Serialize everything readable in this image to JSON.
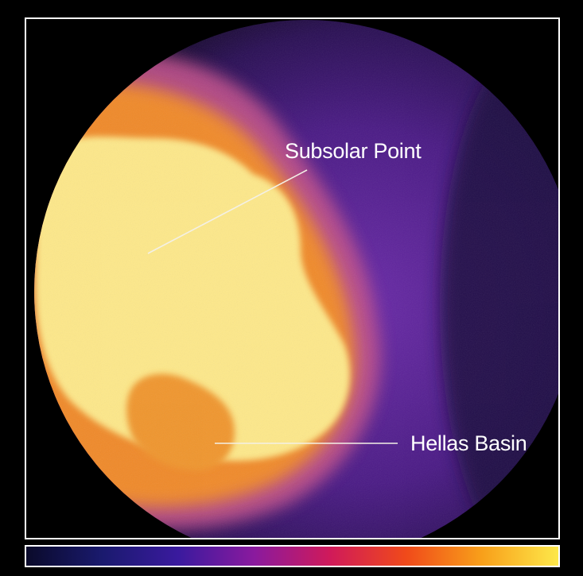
{
  "annotations": {
    "subsolar_point": "Subsolar Point",
    "hellas_basin": "Hellas Basin"
  },
  "colors": {
    "background": "#000000",
    "frame": "#ffffff",
    "cold": "#1a0d33",
    "cool": "#4a1a85",
    "mid": "#b34a8f",
    "warm": "#f08a2a",
    "hot": "#fde88a"
  },
  "colorbar": {
    "stops": [
      "#0a0a2a",
      "#1a1a6e",
      "#3a1a9e",
      "#8a1a9e",
      "#d01a5a",
      "#f04a1a",
      "#f8a01a",
      "#fde84a"
    ]
  }
}
